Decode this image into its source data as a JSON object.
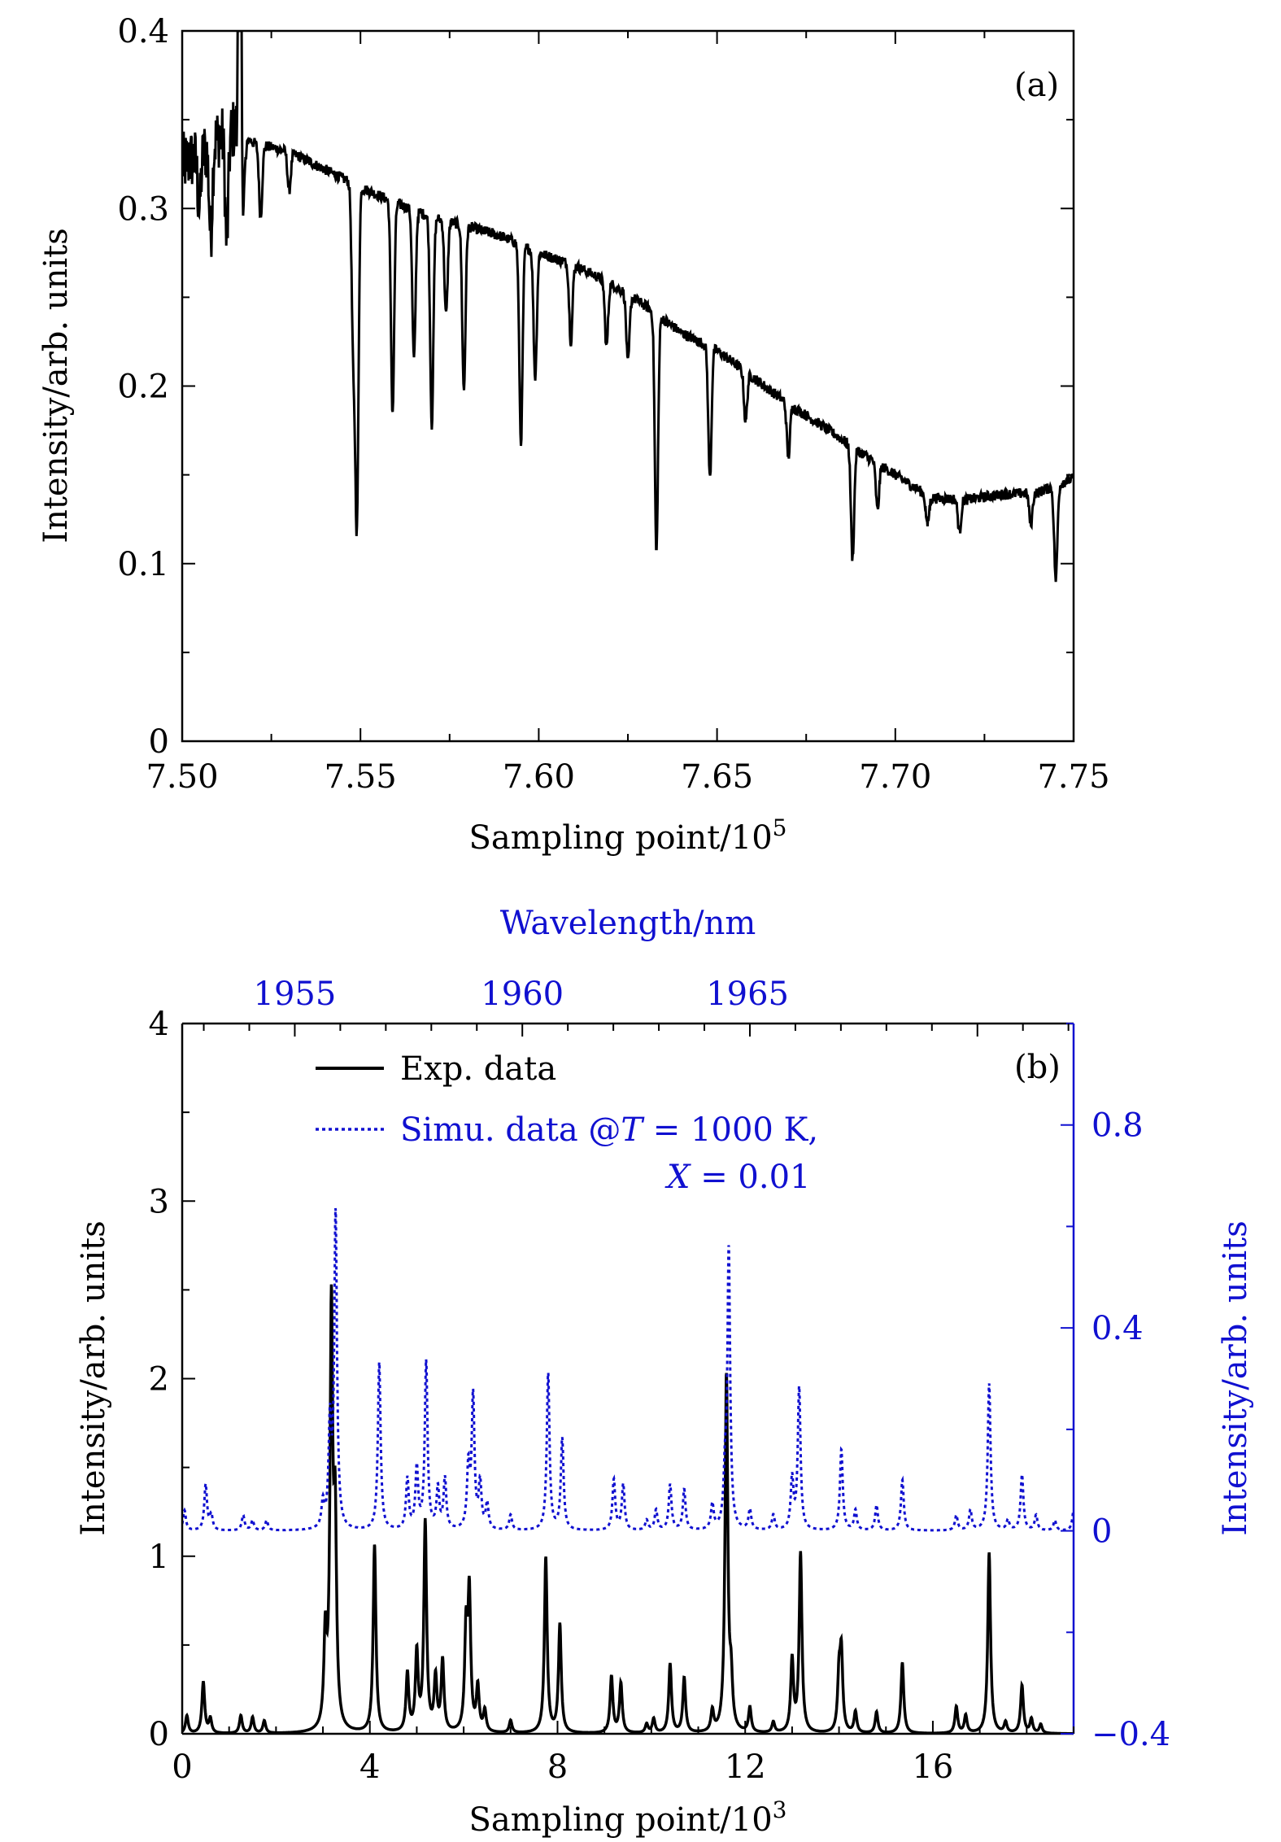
{
  "colors": {
    "exp": "#000000",
    "simu": "#1010d0",
    "axis": "#000000",
    "axis_right": "#1010d0"
  },
  "chart_data": [
    {
      "id": "a",
      "type": "line",
      "panel_label": "(a)",
      "xlabel": "Sampling point/10",
      "xlabel_sup": "5",
      "ylabel": "Intensity/arb. units",
      "xlim": [
        7.5,
        7.75
      ],
      "ylim": [
        0,
        0.4
      ],
      "xticks": [
        7.5,
        7.55,
        7.6,
        7.65,
        7.7,
        7.75
      ],
      "xtick_labels": [
        "7.50",
        "7.55",
        "7.60",
        "7.65",
        "7.70",
        "7.75"
      ],
      "yticks": [
        0,
        0.1,
        0.2,
        0.3,
        0.4
      ],
      "ytick_labels": [
        "0",
        "0.1",
        "0.2",
        "0.3",
        "0.4"
      ],
      "baseline": [
        [
          7.5,
          0.325
        ],
        [
          7.505,
          0.33
        ],
        [
          7.51,
          0.34
        ],
        [
          7.515,
          0.345
        ],
        [
          7.52,
          0.337
        ],
        [
          7.53,
          0.332
        ],
        [
          7.54,
          0.322
        ],
        [
          7.55,
          0.312
        ],
        [
          7.56,
          0.303
        ],
        [
          7.57,
          0.295
        ],
        [
          7.58,
          0.29
        ],
        [
          7.59,
          0.284
        ],
        [
          7.6,
          0.275
        ],
        [
          7.61,
          0.268
        ],
        [
          7.62,
          0.258
        ],
        [
          7.63,
          0.245
        ],
        [
          7.64,
          0.23
        ],
        [
          7.65,
          0.22
        ],
        [
          7.66,
          0.205
        ],
        [
          7.67,
          0.19
        ],
        [
          7.68,
          0.177
        ],
        [
          7.69,
          0.163
        ],
        [
          7.7,
          0.15
        ],
        [
          7.71,
          0.137
        ],
        [
          7.72,
          0.136
        ],
        [
          7.73,
          0.139
        ],
        [
          7.74,
          0.14
        ],
        [
          7.75,
          0.148
        ]
      ],
      "dips": [
        [
          7.5048,
          0.3
        ],
        [
          7.508,
          0.285
        ],
        [
          7.5125,
          0.28
        ],
        [
          7.5173,
          0.31
        ],
        [
          7.522,
          0.295
        ],
        [
          7.53,
          0.31
        ],
        [
          7.549,
          0.126
        ],
        [
          7.548,
          0.22
        ],
        [
          7.559,
          0.185
        ],
        [
          7.565,
          0.215
        ],
        [
          7.57,
          0.178
        ],
        [
          7.574,
          0.24
        ],
        [
          7.579,
          0.198
        ],
        [
          7.595,
          0.168
        ],
        [
          7.599,
          0.205
        ],
        [
          7.609,
          0.225
        ],
        [
          7.619,
          0.222
        ],
        [
          7.625,
          0.213
        ],
        [
          7.633,
          0.106
        ],
        [
          7.648,
          0.148
        ],
        [
          7.658,
          0.18
        ],
        [
          7.67,
          0.16
        ],
        [
          7.688,
          0.103
        ],
        [
          7.695,
          0.13
        ],
        [
          7.709,
          0.122
        ],
        [
          7.718,
          0.118
        ],
        [
          7.738,
          0.122
        ],
        [
          7.745,
          0.091
        ]
      ],
      "series": [
        {
          "name": "",
          "values": []
        }
      ]
    },
    {
      "id": "b",
      "type": "line",
      "panel_label": "(b)",
      "xlabel": "Sampling point/10",
      "xlabel_sup": "3",
      "ylabel": "Intensity/arb. units",
      "ylabel_right": "Intensity/arb. units",
      "xlabel_top": "Wavelength/nm",
      "xlim": [
        0,
        19
      ],
      "ylim": [
        0,
        4
      ],
      "ylim_right": [
        -0.4,
        1.0
      ],
      "xticks": [
        0,
        4,
        8,
        12,
        16
      ],
      "xtick_labels": [
        "0",
        "4",
        "8",
        "12",
        "16"
      ],
      "yticks": [
        0,
        1,
        2,
        3,
        4
      ],
      "ytick_labels": [
        "0",
        "1",
        "2",
        "3",
        "4"
      ],
      "yticks_right": [
        -0.4,
        0,
        0.4,
        0.8
      ],
      "ytick_labels_right": [
        "−0.4",
        "0",
        "0.4",
        "0.8"
      ],
      "top_ticks_x": [
        2.4,
        7.25,
        12.05
      ],
      "top_tick_labels": [
        "1955",
        "1960",
        "1965"
      ],
      "legend": [
        {
          "name": "Exp. data"
        },
        {
          "name_parts": [
            "Simu. data @",
            "T",
            " = 1000 K,"
          ],
          "name_line2_parts": [
            "X",
            " = 0.01"
          ]
        }
      ],
      "series": [
        {
          "name": "Exp. data",
          "peaks": [
            [
              0.1,
              0.1
            ],
            [
              0.45,
              0.29
            ],
            [
              0.6,
              0.08
            ],
            [
              1.25,
              0.1
            ],
            [
              1.5,
              0.09
            ],
            [
              1.75,
              0.07
            ],
            [
              3.05,
              0.5
            ],
            [
              3.18,
              2.32
            ],
            [
              3.26,
              1.1
            ],
            [
              4.1,
              1.06
            ],
            [
              4.8,
              0.33
            ],
            [
              5.0,
              0.44
            ],
            [
              5.18,
              1.18
            ],
            [
              5.4,
              0.3
            ],
            [
              5.55,
              0.4
            ],
            [
              6.05,
              0.55
            ],
            [
              6.12,
              0.76
            ],
            [
              6.3,
              0.25
            ],
            [
              6.45,
              0.12
            ],
            [
              7.0,
              0.07
            ],
            [
              7.75,
              0.99
            ],
            [
              8.05,
              0.61
            ],
            [
              9.15,
              0.32
            ],
            [
              9.35,
              0.28
            ],
            [
              9.9,
              0.05
            ],
            [
              10.05,
              0.08
            ],
            [
              10.4,
              0.39
            ],
            [
              10.7,
              0.31
            ],
            [
              11.3,
              0.12
            ],
            [
              11.6,
              2.01
            ],
            [
              11.7,
              0.25
            ],
            [
              12.1,
              0.14
            ],
            [
              12.6,
              0.06
            ],
            [
              13.0,
              0.41
            ],
            [
              13.18,
              1.01
            ],
            [
              14.0,
              0.3
            ],
            [
              14.05,
              0.43
            ],
            [
              14.35,
              0.12
            ],
            [
              14.8,
              0.12
            ],
            [
              15.35,
              0.4
            ],
            [
              16.5,
              0.15
            ],
            [
              16.7,
              0.1
            ],
            [
              17.2,
              1.02
            ],
            [
              17.55,
              0.06
            ],
            [
              17.9,
              0.27
            ],
            [
              18.1,
              0.08
            ],
            [
              18.3,
              0.05
            ]
          ]
        },
        {
          "name": "Simu. data",
          "peaks": [
            [
              0.05,
              0.04
            ],
            [
              0.5,
              0.09
            ],
            [
              0.62,
              0.03
            ],
            [
              1.3,
              0.03
            ],
            [
              1.5,
              0.02
            ],
            [
              1.8,
              0.02
            ],
            [
              3.0,
              0.05
            ],
            [
              3.15,
              0.2
            ],
            [
              3.27,
              0.62
            ],
            [
              4.2,
              0.33
            ],
            [
              4.8,
              0.1
            ],
            [
              5.0,
              0.12
            ],
            [
              5.2,
              0.33
            ],
            [
              5.45,
              0.08
            ],
            [
              5.6,
              0.1
            ],
            [
              6.1,
              0.12
            ],
            [
              6.2,
              0.26
            ],
            [
              6.35,
              0.09
            ],
            [
              6.5,
              0.05
            ],
            [
              7.0,
              0.03
            ],
            [
              7.8,
              0.31
            ],
            [
              8.1,
              0.18
            ],
            [
              9.2,
              0.1
            ],
            [
              9.4,
              0.09
            ],
            [
              9.9,
              0.02
            ],
            [
              10.1,
              0.04
            ],
            [
              10.4,
              0.09
            ],
            [
              10.7,
              0.08
            ],
            [
              11.3,
              0.05
            ],
            [
              11.57,
              0.09
            ],
            [
              11.65,
              0.55
            ],
            [
              12.1,
              0.04
            ],
            [
              12.6,
              0.03
            ],
            [
              13.0,
              0.1
            ],
            [
              13.15,
              0.28
            ],
            [
              14.05,
              0.16
            ],
            [
              14.35,
              0.04
            ],
            [
              14.8,
              0.05
            ],
            [
              15.35,
              0.1
            ],
            [
              16.5,
              0.03
            ],
            [
              16.8,
              0.04
            ],
            [
              17.2,
              0.29
            ],
            [
              17.6,
              0.02
            ],
            [
              17.9,
              0.11
            ],
            [
              18.2,
              0.03
            ],
            [
              18.6,
              0.02
            ],
            [
              19.0,
              0.04
            ]
          ]
        }
      ]
    }
  ]
}
